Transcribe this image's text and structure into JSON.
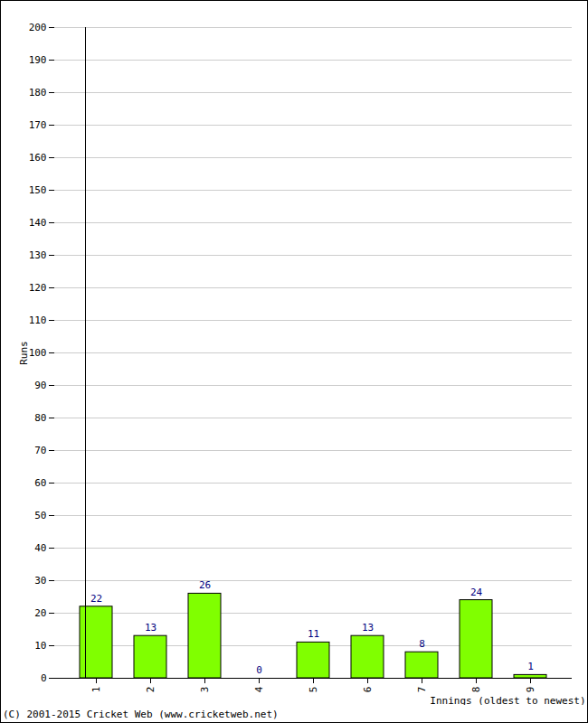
{
  "chart_data": {
    "type": "bar",
    "caption": "(C) 2001-2015 Cricket Web (www.cricketweb.net)",
    "x_label": "Innings (oldest to newest)",
    "y_label": "Runs",
    "categories": [
      "1",
      "2",
      "3",
      "4",
      "5",
      "6",
      "7",
      "8",
      "9"
    ],
    "values": [
      22,
      13,
      26,
      0,
      11,
      13,
      8,
      24,
      1
    ],
    "color": "#80ff00",
    "ylim": [
      0,
      200
    ],
    "yticks": [
      0,
      10,
      20,
      30,
      40,
      50,
      60,
      70,
      80,
      90,
      100,
      110,
      120,
      130,
      140,
      150,
      160,
      170,
      180,
      190,
      200
    ],
    "grid": true,
    "data_labels": true
  }
}
